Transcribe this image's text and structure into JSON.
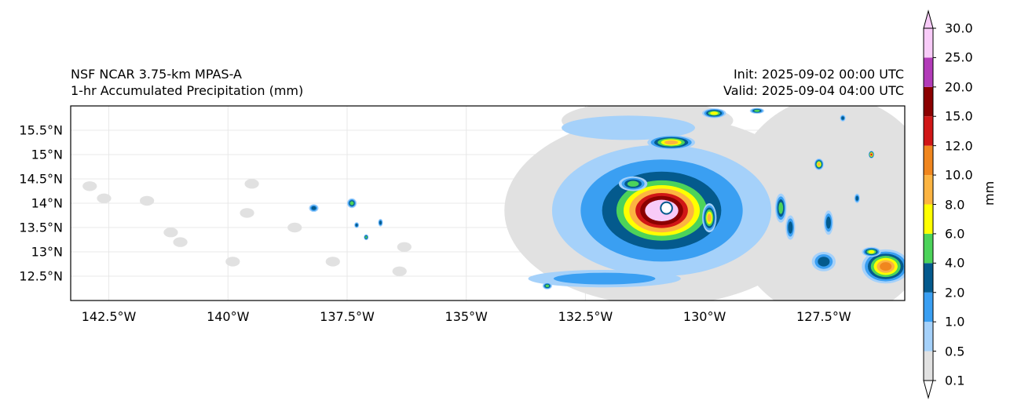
{
  "title_left": {
    "line1": "NSF NCAR 3.75-km MPAS-A",
    "line2": "1-hr Accumulated Precipitation (mm)"
  },
  "title_right": {
    "line1": "Init: 2025-09-02 00:00 UTC",
    "line2": "Valid: 2025-09-04 04:00 UTC"
  },
  "map": {
    "lon_range": [
      -143.3,
      -125.8
    ],
    "lat_range": [
      12.0,
      16.0
    ],
    "lon_ticks": [
      {
        "value": -142.5,
        "label": "142.5°W"
      },
      {
        "value": -140,
        "label": "140°W"
      },
      {
        "value": -137.5,
        "label": "137.5°W"
      },
      {
        "value": -135,
        "label": "135°W"
      },
      {
        "value": -132.5,
        "label": "132.5°W"
      },
      {
        "value": -130,
        "label": "130°W"
      },
      {
        "value": -127.5,
        "label": "127.5°W"
      }
    ],
    "lat_ticks": [
      {
        "value": 15.5,
        "label": "15.5°N"
      },
      {
        "value": 15,
        "label": "15°N"
      },
      {
        "value": 14.5,
        "label": "14.5°N"
      },
      {
        "value": 14,
        "label": "14°N"
      },
      {
        "value": 13.5,
        "label": "13.5°N"
      },
      {
        "value": 13,
        "label": "13°N"
      },
      {
        "value": 12.5,
        "label": "12.5°N"
      }
    ],
    "storm_center": {
      "lon": -130.9,
      "lat": 13.85
    },
    "rainbands": [
      {
        "lon": -132.1,
        "lat": 12.45,
        "rx": 1.6,
        "ry": 0.18,
        "level": 2
      },
      {
        "lon": -131.6,
        "lat": 15.55,
        "rx": 1.4,
        "ry": 0.25,
        "level": 1
      },
      {
        "lon": -130.7,
        "lat": 15.25,
        "rx": 0.5,
        "ry": 0.15,
        "level": 6
      },
      {
        "lon": -129.9,
        "lat": 13.7,
        "rx": 0.15,
        "ry": 0.3,
        "level": 6
      },
      {
        "lon": -129.8,
        "lat": 15.85,
        "rx": 0.25,
        "ry": 0.1,
        "level": 5
      },
      {
        "lon": -131.5,
        "lat": 14.4,
        "rx": 0.3,
        "ry": 0.15,
        "level": 4
      },
      {
        "lon": -128.4,
        "lat": 13.9,
        "rx": 0.12,
        "ry": 0.3,
        "level": 4
      },
      {
        "lon": -128.2,
        "lat": 13.5,
        "rx": 0.1,
        "ry": 0.25,
        "level": 3
      },
      {
        "lon": -127.4,
        "lat": 13.6,
        "rx": 0.1,
        "ry": 0.25,
        "level": 3
      },
      {
        "lon": -127.6,
        "lat": 14.8,
        "rx": 0.1,
        "ry": 0.12,
        "level": 6
      },
      {
        "lon": -127.5,
        "lat": 12.8,
        "rx": 0.25,
        "ry": 0.2,
        "level": 3
      },
      {
        "lon": -126.2,
        "lat": 12.7,
        "rx": 0.5,
        "ry": 0.35,
        "level": 7
      },
      {
        "lon": -126.5,
        "lat": 13.0,
        "rx": 0.2,
        "ry": 0.1,
        "level": 5
      },
      {
        "lon": -126.5,
        "lat": 15.0,
        "rx": 0.06,
        "ry": 0.08,
        "level": 8
      },
      {
        "lon": -138.2,
        "lat": 13.9,
        "rx": 0.1,
        "ry": 0.08,
        "level": 3
      },
      {
        "lon": -137.4,
        "lat": 14.0,
        "rx": 0.1,
        "ry": 0.1,
        "level": 4
      },
      {
        "lon": -137.3,
        "lat": 13.55,
        "rx": 0.05,
        "ry": 0.06,
        "level": 3
      },
      {
        "lon": -136.8,
        "lat": 13.6,
        "rx": 0.05,
        "ry": 0.08,
        "level": 3
      },
      {
        "lon": -137.1,
        "lat": 13.3,
        "rx": 0.05,
        "ry": 0.06,
        "level": 4
      },
      {
        "lon": -133.3,
        "lat": 12.3,
        "rx": 0.1,
        "ry": 0.07,
        "level": 4
      },
      {
        "lon": -128.9,
        "lat": 15.9,
        "rx": 0.15,
        "ry": 0.06,
        "level": 4
      },
      {
        "lon": -127.1,
        "lat": 15.75,
        "rx": 0.06,
        "ry": 0.07,
        "level": 3
      },
      {
        "lon": -126.8,
        "lat": 14.1,
        "rx": 0.06,
        "ry": 0.1,
        "level": 3
      }
    ]
  },
  "colorbar": {
    "unit_label": "mm",
    "levels": [
      {
        "label": "0.1",
        "color": "#e1e1e1"
      },
      {
        "label": "0.5",
        "color": "#a5d1fa"
      },
      {
        "label": "1.0",
        "color": "#3a9ff2"
      },
      {
        "label": "2.0",
        "color": "#045a8d"
      },
      {
        "label": "4.0",
        "color": "#4cd35a"
      },
      {
        "label": "6.0",
        "color": "#ffff00"
      },
      {
        "label": "8.0",
        "color": "#fcb441"
      },
      {
        "label": "10.0",
        "color": "#f0861e"
      },
      {
        "label": "12.0",
        "color": "#d01616"
      },
      {
        "label": "15.0",
        "color": "#8b0000"
      },
      {
        "label": "20.0",
        "color": "#b23bb8"
      },
      {
        "label": "25.0",
        "color": "#f8cbf8"
      },
      {
        "label": "30.0",
        "color": ""
      }
    ]
  }
}
